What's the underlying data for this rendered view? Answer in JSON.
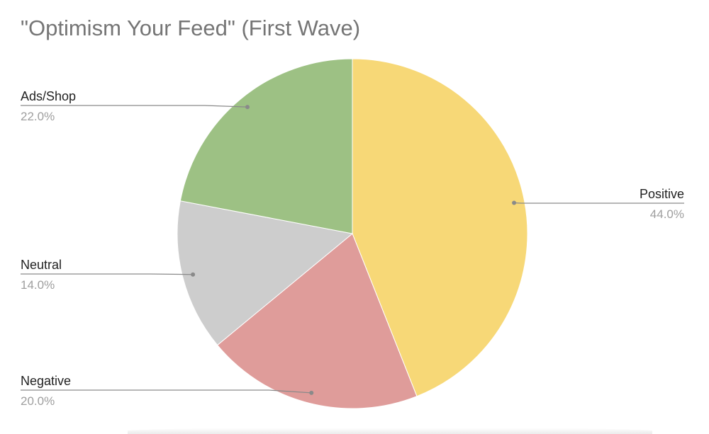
{
  "chart_data": {
    "type": "pie",
    "title": "\"Optimism Your Feed\" (First Wave)",
    "slices": [
      {
        "label": "Positive",
        "value": 44.0,
        "percent_label": "44.0%",
        "color": "#F7D877"
      },
      {
        "label": "Negative",
        "value": 20.0,
        "percent_label": "20.0%",
        "color": "#DF9C9A"
      },
      {
        "label": "Neutral",
        "value": 14.0,
        "percent_label": "14.0%",
        "color": "#CDCDCD"
      },
      {
        "label": "Ads/Shop",
        "value": 22.0,
        "percent_label": "22.0%",
        "color": "#9DC184"
      }
    ],
    "start_angle": "12 o'clock",
    "direction": "clockwise",
    "label_style": "leader lines with category name and percentage",
    "colors": {
      "title": "#757575",
      "label_name": "#222222",
      "label_percent": "#9E9E9E",
      "leader_line": "#8A8A8A"
    }
  }
}
